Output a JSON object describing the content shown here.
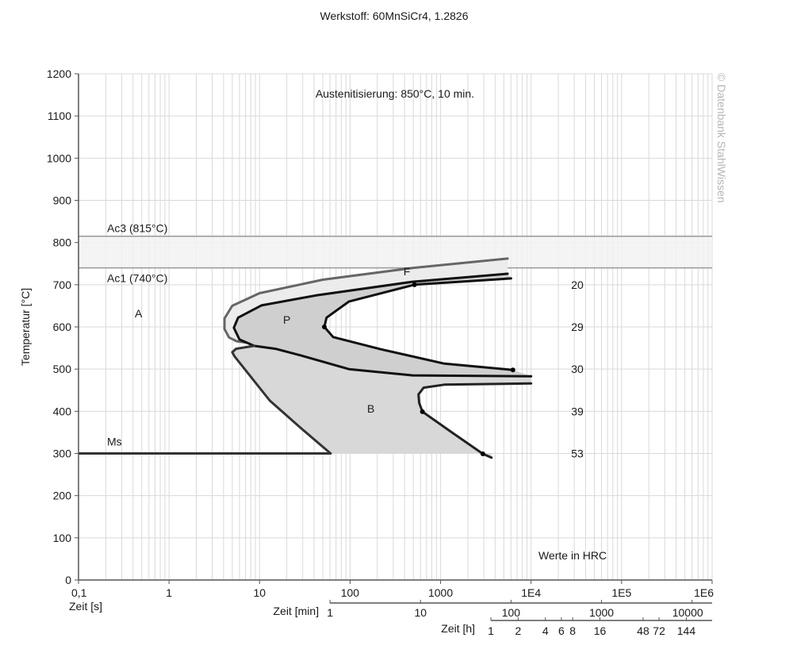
{
  "chart_data": {
    "type": "line",
    "title": "Werkstoff: 60MnSiCr4, 1.2826",
    "subtitle": "Austenitisierung: 850°C, 10 min.",
    "watermark": "© Datenbank StahlWissen",
    "xlabel": "Zeit [s]",
    "ylabel": "Temperatur [°C]",
    "x_scale": "log",
    "xlim": [
      0.1,
      1000000
    ],
    "ylim": [
      0,
      1200
    ],
    "grid": true,
    "x_ticks": [
      {
        "value": 0.1,
        "label": "0,1"
      },
      {
        "value": 1,
        "label": "1"
      },
      {
        "value": 10,
        "label": "10"
      },
      {
        "value": 100,
        "label": "100"
      },
      {
        "value": 1000,
        "label": "1000"
      },
      {
        "value": 10000,
        "label": "1E4"
      },
      {
        "value": 100000,
        "label": "1E5"
      },
      {
        "value": 1000000,
        "label": "1E6"
      }
    ],
    "y_ticks": [
      0,
      100,
      200,
      300,
      400,
      500,
      600,
      700,
      800,
      900,
      1000,
      1100,
      1200
    ],
    "secondary_axes": [
      {
        "label": "Zeit [min]",
        "ticks": [
          {
            "min": 1,
            "label": "1"
          },
          {
            "min": 10,
            "label": "10"
          },
          {
            "min": 100,
            "label": "100"
          },
          {
            "min": 1000,
            "label": "1000"
          },
          {
            "min": 10000,
            "label": "10000"
          }
        ]
      },
      {
        "label": "Zeit [h]",
        "ticks": [
          {
            "h": 1,
            "label": "1"
          },
          {
            "h": 2,
            "label": "2"
          },
          {
            "h": 4,
            "label": "4"
          },
          {
            "h": 6,
            "label": "6"
          },
          {
            "h": 8,
            "label": "8"
          },
          {
            "h": 16,
            "label": "16"
          },
          {
            "h": 48,
            "label": "48"
          },
          {
            "h": 72,
            "label": "72"
          },
          {
            "h": 144,
            "label": "144"
          }
        ]
      }
    ],
    "reference_lines": [
      {
        "name": "Ac3",
        "label": "Ac3 (815°C)",
        "temp": 815
      },
      {
        "name": "Ac1",
        "label": "Ac1 (740°C)",
        "temp": 740
      },
      {
        "name": "Ms",
        "label": "Ms",
        "temp": 300,
        "t_end": 61
      }
    ],
    "curves": [
      {
        "name": "ferrite-start",
        "color": "#666666",
        "points": [
          [
            5500,
            762
          ],
          [
            500,
            740
          ],
          [
            50,
            712
          ],
          [
            10,
            680
          ],
          [
            5,
            650
          ],
          [
            4.1,
            620
          ],
          [
            4.1,
            595
          ],
          [
            4.6,
            575
          ],
          [
            5.6,
            566
          ],
          [
            7,
            563
          ]
        ]
      },
      {
        "name": "pearlite-start",
        "color": "#111111",
        "points": [
          [
            5500,
            726
          ],
          [
            490,
            707
          ],
          [
            43,
            675
          ],
          [
            10.5,
            651
          ],
          [
            5.8,
            622
          ],
          [
            5.2,
            598
          ],
          [
            6.0,
            570
          ],
          [
            8.7,
            555
          ],
          [
            15,
            548
          ],
          [
            29,
            532
          ],
          [
            97,
            500
          ],
          [
            490,
            485
          ],
          [
            10000,
            483
          ]
        ]
      },
      {
        "name": "pearlite-finish",
        "color": "#111111",
        "points": [
          [
            6000,
            715
          ],
          [
            515,
            700
          ],
          [
            97,
            660
          ],
          [
            55,
            622
          ],
          [
            52,
            600
          ],
          [
            65,
            576
          ],
          [
            219,
            547
          ],
          [
            1100,
            513
          ],
          [
            6300,
            498
          ]
        ]
      },
      {
        "name": "bainite-start",
        "color": "#333333",
        "points": [
          [
            8.7,
            555
          ],
          [
            5.5,
            548
          ],
          [
            5.0,
            540
          ],
          [
            5.3,
            530
          ],
          [
            13,
            425
          ],
          [
            29,
            359
          ],
          [
            61,
            300
          ]
        ]
      },
      {
        "name": "bainite-finish",
        "color": "#222222",
        "points": [
          [
            10000,
            466
          ],
          [
            1100,
            463
          ],
          [
            650,
            456
          ],
          [
            570,
            440
          ],
          [
            580,
            420
          ],
          [
            630,
            399
          ],
          [
            1330,
            350
          ],
          [
            2930,
            299
          ],
          [
            3650,
            290
          ]
        ]
      }
    ],
    "markers": [
      [
        515,
        700
      ],
      [
        52,
        600
      ],
      [
        6300,
        498
      ],
      [
        630,
        399
      ],
      [
        2930,
        299
      ]
    ],
    "regions": [
      {
        "label": "A",
        "t": 0.46,
        "temp": 632
      },
      {
        "label": "P",
        "t": 20,
        "temp": 617
      },
      {
        "label": "F",
        "t": 424,
        "temp": 732
      },
      {
        "label": "B",
        "t": 170,
        "temp": 406
      }
    ],
    "hardness": {
      "caption": "Werte in HRC",
      "values": [
        {
          "temp": 700,
          "label": "20"
        },
        {
          "temp": 600,
          "label": "29"
        },
        {
          "temp": 500,
          "label": "30"
        },
        {
          "temp": 400,
          "label": "39"
        },
        {
          "temp": 300,
          "label": "53"
        }
      ]
    },
    "colors": {
      "ac_band": "#f2f2f2",
      "ferrite_fill": "#ececec",
      "pearlite_fill": "#cfcfcf",
      "bainite_fill": "#d8d8d8",
      "grid": "#d9d9d9"
    }
  }
}
